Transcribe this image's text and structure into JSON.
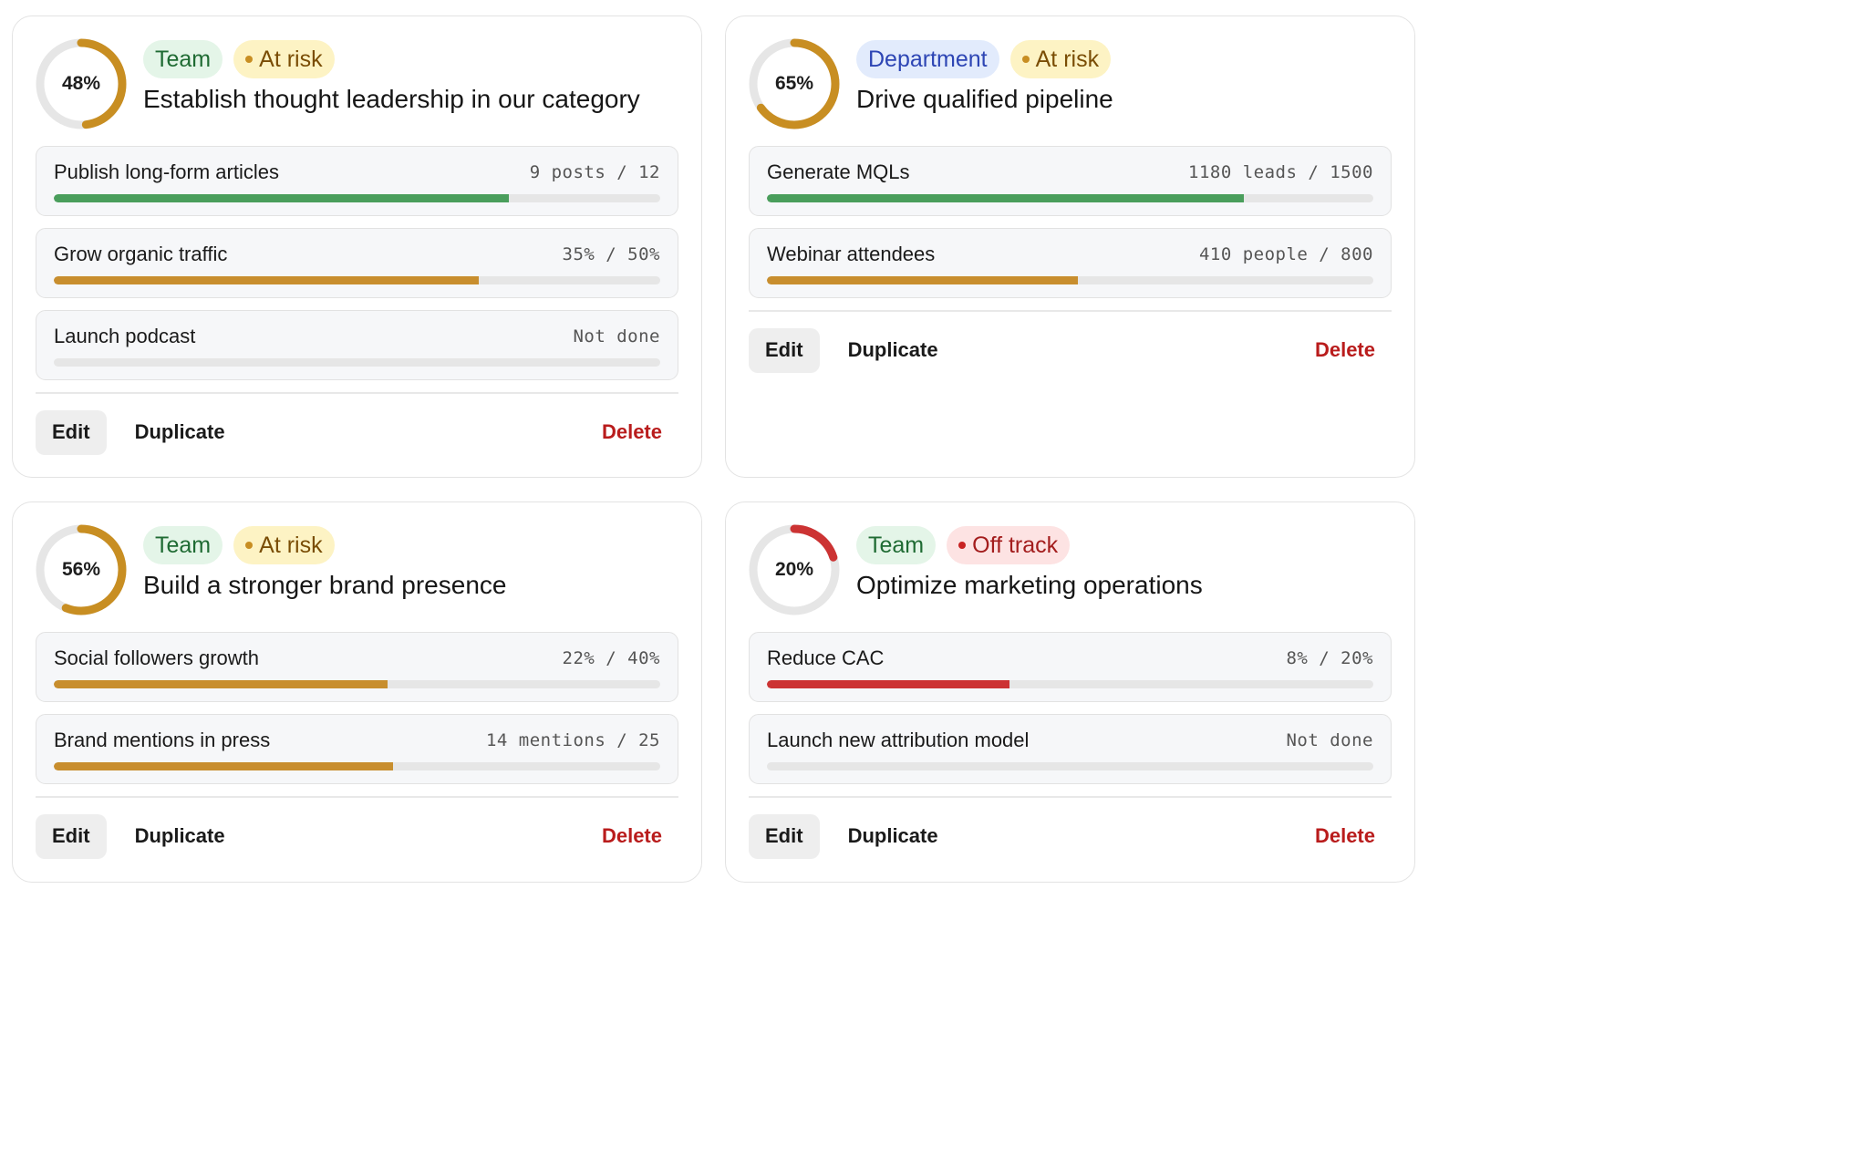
{
  "colors": {
    "ring_track": "#e6e6e6",
    "ring_at_risk": "#c88e22",
    "ring_off_track": "#cc3333",
    "bar_green": "#4a9e5c",
    "bar_amber": "#c88e2e",
    "bar_red": "#cc3333",
    "delete_text": "#b91c1c"
  },
  "actions": {
    "edit": "Edit",
    "duplicate": "Duplicate",
    "delete": "Delete"
  },
  "cards": [
    {
      "progress": 48,
      "progress_label": "48%",
      "level": "Team",
      "status": "At risk",
      "status_kind": "risk",
      "objective": "Establish thought leadership in our category",
      "key_results": [
        {
          "title": "Publish long-form articles",
          "meta": "9 posts / 12",
          "progress": 0.75,
          "color": "green"
        },
        {
          "title": "Grow organic traffic",
          "meta": "35% / 50%",
          "progress": 0.7,
          "color": "amber"
        },
        {
          "title": "Launch podcast",
          "meta": "Not done",
          "progress": 0,
          "color": "amber"
        }
      ]
    },
    {
      "progress": 65,
      "progress_label": "65%",
      "level": "Department",
      "status": "At risk",
      "status_kind": "risk",
      "objective": "Drive qualified pipeline",
      "key_results": [
        {
          "title": "Generate MQLs",
          "meta": "1180 leads / 1500",
          "progress": 0.787,
          "color": "green"
        },
        {
          "title": "Webinar attendees",
          "meta": "410 people / 800",
          "progress": 0.513,
          "color": "amber"
        }
      ]
    },
    {
      "progress": 56,
      "progress_label": "56%",
      "level": "Team",
      "status": "At risk",
      "status_kind": "risk",
      "objective": "Build a stronger brand presence",
      "key_results": [
        {
          "title": "Social followers growth",
          "meta": "22% / 40%",
          "progress": 0.55,
          "color": "amber"
        },
        {
          "title": "Brand mentions in press",
          "meta": "14 mentions / 25",
          "progress": 0.56,
          "color": "amber"
        }
      ]
    },
    {
      "progress": 20,
      "progress_label": "20%",
      "level": "Team",
      "status": "Off track",
      "status_kind": "off",
      "objective": "Optimize marketing operations",
      "key_results": [
        {
          "title": "Reduce CAC",
          "meta": "8% / 20%",
          "progress": 0.4,
          "color": "red"
        },
        {
          "title": "Launch new attribution model",
          "meta": "Not done",
          "progress": 0,
          "color": "red"
        }
      ]
    }
  ]
}
